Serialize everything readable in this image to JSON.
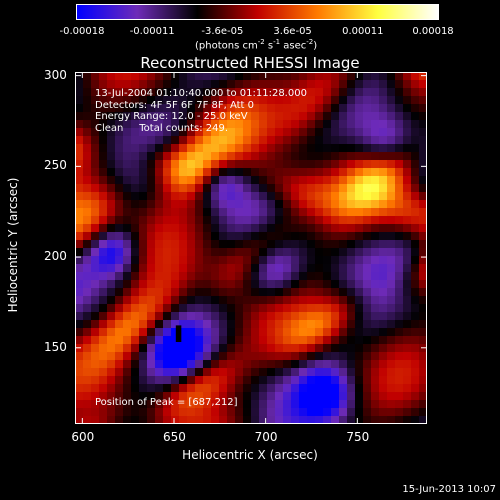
{
  "colorbar": {
    "ticks": [
      "-0.00018",
      "-0.00011",
      "-3.6e-05",
      "3.6e-05",
      "0.00011",
      "0.00018"
    ],
    "unit_parts": [
      "(photons cm",
      "-2",
      " s",
      "-1",
      " asec",
      "-2",
      ")"
    ],
    "colormap": [
      "#0000ff",
      "#6e2bb8",
      "#000000",
      "#c00000",
      "#ff7a00",
      "#ffff40",
      "#ffffff"
    ]
  },
  "chart_data": {
    "type": "heatmap",
    "title": "Reconstructed RHESSI Image",
    "xlabel": "Heliocentric X (arcsec)",
    "ylabel": "Heliocentric Y (arcsec)",
    "xlim": [
      596,
      788
    ],
    "ylim": [
      108,
      302
    ],
    "xticks": [
      600,
      650,
      700,
      750
    ],
    "yticks": [
      150,
      200,
      250,
      300
    ],
    "peak": [
      687,
      212
    ],
    "annotations": [
      "13-Jul-2004 01:10:40.000 to 01:11:28.000",
      "Detectors: 4F 5F 6F 7F 8F, Att 0",
      "Energy Range: 12.0 - 25.0 keV",
      "Clean     Total counts: 249."
    ],
    "peak_label": "Position of Peak = [687,212]"
  },
  "footer": {
    "date": "15-Jun-2013 10:07"
  }
}
